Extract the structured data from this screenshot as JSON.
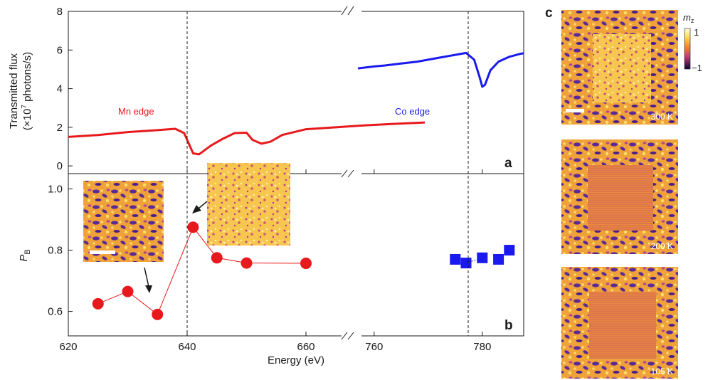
{
  "chart_data": [
    {
      "panel": "a",
      "type": "line",
      "ylabel_line1": "Transmitted flux",
      "ylabel_line2": "(×10",
      "ylabel_sup": "7",
      "ylabel_tail": " photons/s)",
      "ylim": [
        -0.4,
        8
      ],
      "yticks": [
        "0",
        "2",
        "4",
        "6",
        "8"
      ],
      "x_broken_axis": true,
      "series": [
        {
          "name": "Mn edge",
          "color": "#e8191c",
          "x": [
            620,
            625,
            630,
            635,
            638,
            639.5,
            641,
            642,
            644,
            646,
            648,
            650,
            651,
            652.5,
            654,
            656,
            660,
            665,
            670,
            675,
            680
          ],
          "y": [
            1.5,
            1.6,
            1.75,
            1.85,
            1.92,
            1.7,
            0.65,
            0.6,
            1.05,
            1.4,
            1.7,
            1.72,
            1.35,
            1.15,
            1.25,
            1.6,
            1.9,
            2.0,
            2.1,
            2.18,
            2.25
          ]
        },
        {
          "name": "Co edge",
          "color": "#1a1aee",
          "x": [
            757,
            760,
            762,
            765,
            768,
            770,
            772,
            775,
            777,
            778.5,
            779.5,
            780,
            780.5,
            781.5,
            783,
            785,
            787,
            790
          ],
          "y": [
            5.05,
            5.15,
            5.2,
            5.3,
            5.4,
            5.5,
            5.6,
            5.75,
            5.85,
            5.5,
            4.6,
            4.1,
            4.2,
            4.95,
            5.4,
            5.65,
            5.8,
            5.95
          ]
        }
      ],
      "vlines_x": [
        641,
        780
      ],
      "panel_label": "a"
    },
    {
      "panel": "b",
      "type": "scatter",
      "ylabel": "P",
      "ylabel_sub": "B",
      "ylim": [
        0.52,
        1.05
      ],
      "yticks": [
        "0.6",
        "0.8",
        "1.0"
      ],
      "xlabel": "Energy (eV)",
      "xticks": [
        "620",
        "640",
        "660",
        "760",
        "780"
      ],
      "series": [
        {
          "name": "Mn edge",
          "color": "#e8191c",
          "marker": "circle",
          "x": [
            625,
            630,
            635,
            641,
            645,
            650,
            660
          ],
          "y": [
            0.625,
            0.665,
            0.59,
            0.875,
            0.775,
            0.758,
            0.757
          ]
        },
        {
          "name": "Co edge",
          "color": "#1a1aee",
          "marker": "square",
          "x": [
            775,
            777,
            780,
            783,
            785
          ],
          "y": [
            0.77,
            0.758,
            0.775,
            0.77,
            0.8
          ]
        }
      ],
      "vlines_x": [
        641,
        780
      ],
      "panel_label": "b"
    },
    {
      "panel": "c",
      "type": "heatmap",
      "colorbar_label": "m",
      "colorbar_sub": "z",
      "colorbar_range": [
        "1",
        "−1"
      ],
      "images": [
        "300 K",
        "200 K",
        "105 K"
      ],
      "panel_label": "c"
    }
  ]
}
